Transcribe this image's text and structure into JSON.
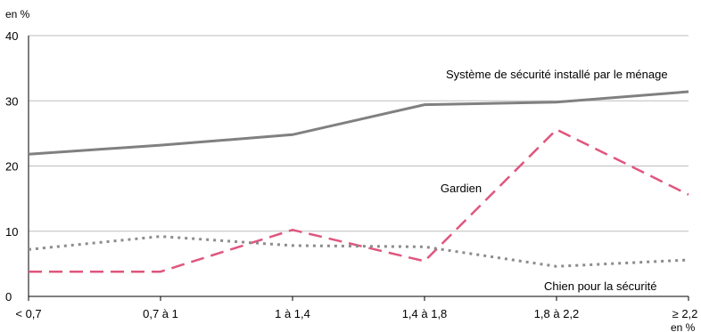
{
  "chart_data": {
    "type": "line",
    "ylabel": "en %",
    "xlabel": "en %",
    "categories": [
      "< 0,7",
      "0,7 à 1",
      "1 à 1,4",
      "1,4 à 1,8",
      "1,8 à 2,2",
      "≥ 2,2"
    ],
    "ylim": [
      0,
      40
    ],
    "yticks": [
      0,
      10,
      20,
      30,
      40
    ],
    "grid": true,
    "series": [
      {
        "name": "Système de sécurité installé par le ménage",
        "values": [
          21.8,
          23.2,
          24.8,
          29.4,
          29.8,
          31.4
        ],
        "color": "#808080",
        "style": "solid"
      },
      {
        "name": "Gardien",
        "values": [
          3.8,
          3.8,
          10.2,
          5.4,
          25.6,
          15.6
        ],
        "color": "#e0567e",
        "style": "dashed"
      },
      {
        "name": "Chien pour la sécurité",
        "values": [
          7.2,
          9.2,
          7.8,
          7.6,
          4.6,
          5.6
        ],
        "color": "#8c8c8c",
        "style": "dotted"
      }
    ]
  }
}
